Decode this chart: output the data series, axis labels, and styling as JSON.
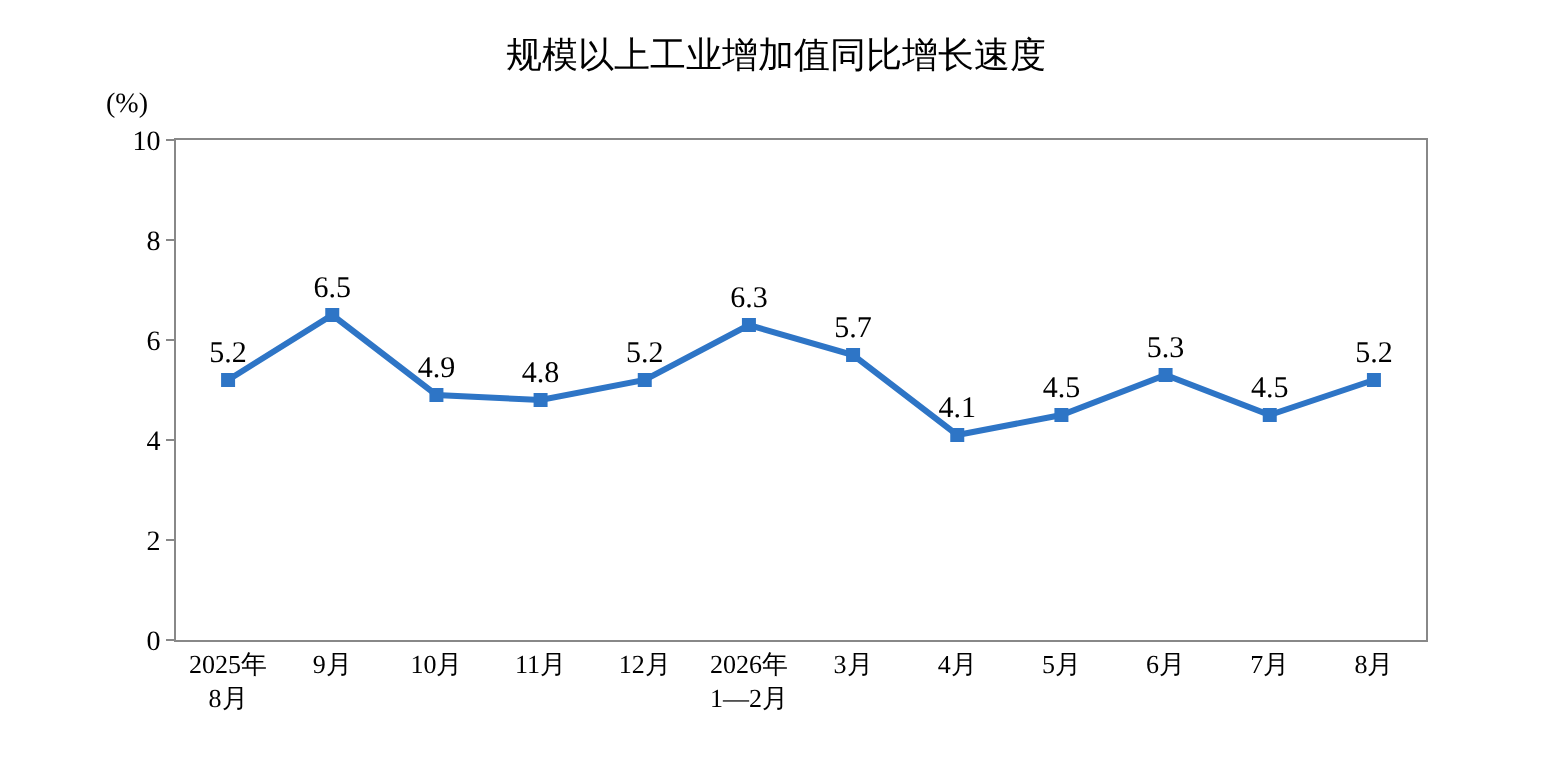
{
  "chart_data": {
    "type": "line",
    "title": "规模以上工业增加值同比增长速度",
    "ylabel": "(%)",
    "categories": [
      "2025年\n8月",
      "9月",
      "10月",
      "11月",
      "12月",
      "2026年\n1—2月",
      "3月",
      "4月",
      "5月",
      "6月",
      "7月",
      "8月"
    ],
    "series": [
      {
        "color": "#2e75c6",
        "values": [
          5.2,
          6.5,
          4.9,
          4.8,
          5.2,
          6.3,
          5.7,
          4.1,
          4.5,
          5.3,
          4.5,
          5.2
        ]
      }
    ],
    "ylim": [
      0,
      10
    ],
    "yticks": [
      0,
      2,
      4,
      6,
      8,
      10
    ],
    "marker": "square",
    "line_style": "solid",
    "data_labels": true
  }
}
